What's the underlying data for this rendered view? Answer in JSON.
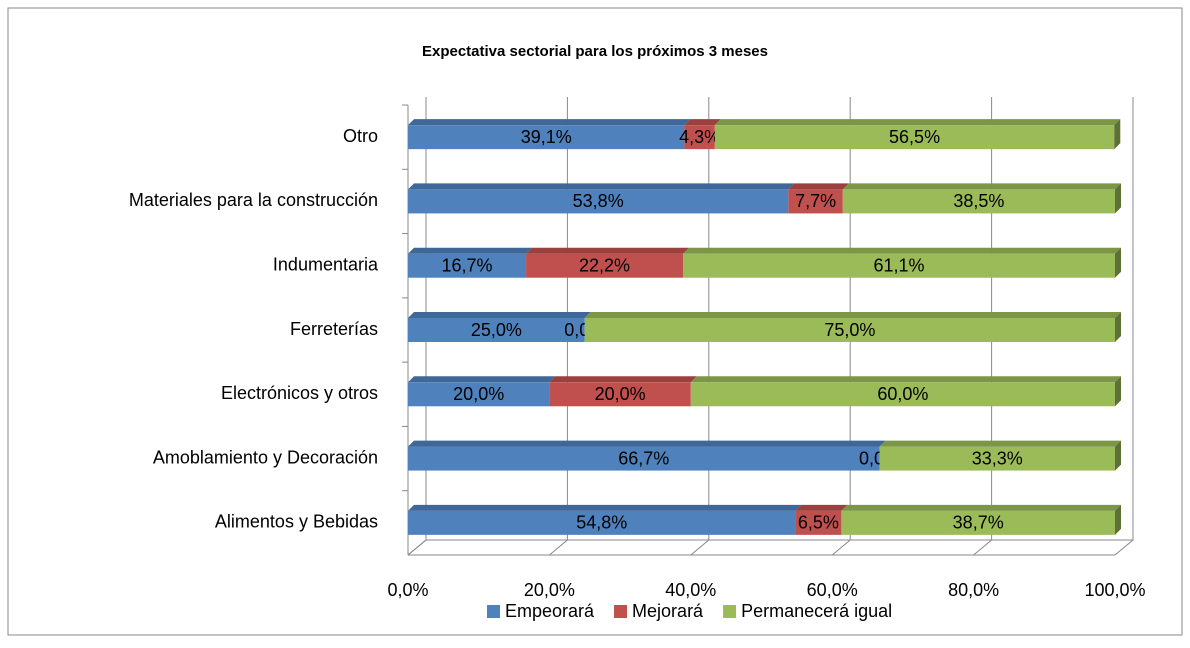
{
  "chart_data": {
    "type": "bar",
    "orientation": "horizontal",
    "stacked": true,
    "title": "Expectativa sectorial para los próximos 3 meses",
    "categories": [
      "Otro",
      "Materiales para la construcción",
      "Indumentaria",
      "Ferreterías",
      "Electrónicos y otros",
      "Amoblamiento y Decoración",
      "Alimentos y Bebidas"
    ],
    "series": [
      {
        "name": "Empeorará",
        "color": "#4f81bd",
        "values": [
          39.1,
          53.8,
          16.7,
          25.0,
          20.0,
          66.7,
          54.8
        ],
        "value_labels": [
          "39,1%",
          "53,8%",
          "16,7%",
          "25,0%",
          "20,0%",
          "66,7%",
          "54,8%"
        ]
      },
      {
        "name": "Mejorará",
        "color": "#c0504d",
        "values": [
          4.3,
          7.7,
          22.2,
          0.0,
          20.0,
          0.0,
          6.5
        ],
        "value_labels": [
          "4,3%",
          "7,7%",
          "22,2%",
          "0,0%",
          "20,0%",
          "0,0%",
          "6,5%"
        ]
      },
      {
        "name": "Permanecerá igual",
        "color": "#9bbb59",
        "values": [
          56.5,
          38.5,
          61.1,
          75.0,
          60.0,
          33.3,
          38.7
        ],
        "value_labels": [
          "56,5%",
          "38,5%",
          "61,1%",
          "75,0%",
          "60,0%",
          "33,3%",
          "38,7%"
        ]
      }
    ],
    "xlim": [
      0,
      100
    ],
    "xticks": [
      {
        "value": 0,
        "label": "0,0%"
      },
      {
        "value": 20,
        "label": "20,0%"
      },
      {
        "value": 40,
        "label": "40,0%"
      },
      {
        "value": 60,
        "label": "60,0%"
      },
      {
        "value": 80,
        "label": "80,0%"
      },
      {
        "value": 100,
        "label": "100,0%"
      }
    ],
    "grid": true,
    "legend": "bottom"
  }
}
